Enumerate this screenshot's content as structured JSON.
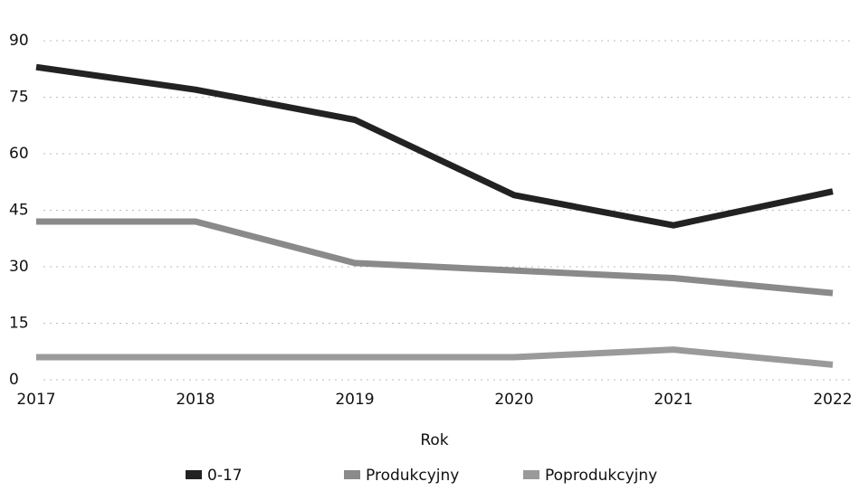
{
  "chart_data": {
    "type": "line",
    "categories": [
      "2017",
      "2018",
      "2019",
      "2020",
      "2021",
      "2022"
    ],
    "series": [
      {
        "name": "0-17",
        "color": "#222222",
        "values": [
          83,
          77,
          69,
          49,
          41,
          50
        ]
      },
      {
        "name": "Produkcyjny",
        "color": "#8a8a8a",
        "values": [
          42,
          42,
          31,
          29,
          27,
          23
        ]
      },
      {
        "name": "Poprodukcyjny",
        "color": "#9a9a9a",
        "values": [
          6,
          6,
          6,
          6,
          8,
          4
        ]
      }
    ],
    "xlabel": "Rok",
    "ylim": [
      0,
      90
    ],
    "yticks": [
      0,
      15,
      30,
      45,
      60,
      75,
      90
    ],
    "grid": true,
    "legend": "bottom"
  }
}
